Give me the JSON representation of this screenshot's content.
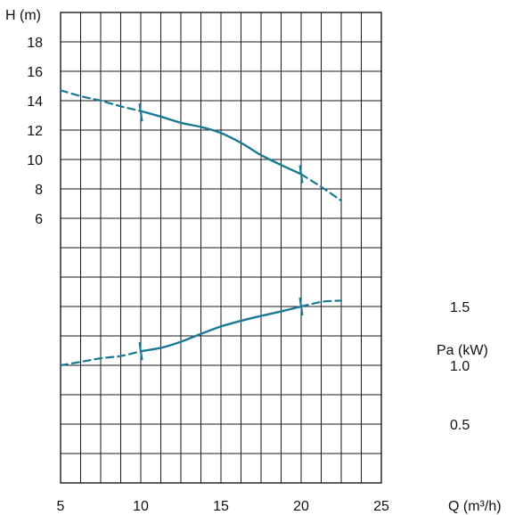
{
  "chart_data": {
    "type": "line",
    "colors": {
      "curve": "#1a7a94",
      "grid": "#1a1a1a"
    },
    "x_axis": {
      "label": "Q (m³/h)",
      "ticks": [
        "5",
        "10",
        "15",
        "20",
        "25"
      ],
      "range": [
        5,
        25
      ],
      "grid_step": 1.25
    },
    "h_axis": {
      "label": "H (m)",
      "ticks": [
        "18",
        "16",
        "14",
        "12",
        "10",
        "8",
        "6"
      ],
      "range": [
        -12,
        20
      ],
      "grid_step": 2
    },
    "p_axis": {
      "label": "Pa (kW)",
      "ticks": [
        "1.5",
        "1.0",
        "0.5"
      ],
      "range": [
        0,
        4
      ],
      "grid_step": 0.25
    },
    "series": [
      {
        "axis": "h_axis",
        "dashed_segments": [
          {
            "x": [
              5,
              6.3,
              7.5,
              8.8,
              10.0
            ],
            "y": [
              14.7,
              14.3,
              14.0,
              13.6,
              13.3
            ]
          },
          {
            "x": [
              20.0,
              21.3,
              22.5
            ],
            "y": [
              9.0,
              8.1,
              7.2
            ]
          }
        ],
        "solid_segment": {
          "x": [
            10.0,
            11.3,
            12.5,
            13.8,
            15.0,
            16.3,
            17.5,
            18.8,
            20.0
          ],
          "y": [
            13.3,
            12.9,
            12.5,
            12.2,
            11.8,
            11.1,
            10.3,
            9.6,
            9.0
          ]
        },
        "marks": [
          {
            "x": 10.0,
            "y": 13.2
          },
          {
            "x": 20.0,
            "y": 9.0
          }
        ]
      },
      {
        "axis": "p_axis",
        "dashed_segments": [
          {
            "x": [
              5,
              6.3,
              7.5,
              8.8,
              10.0
            ],
            "y": [
              1.0,
              1.03,
              1.06,
              1.08,
              1.12
            ]
          },
          {
            "x": [
              20.0,
              21.3,
              22.5
            ],
            "y": [
              1.5,
              1.54,
              1.55
            ]
          }
        ],
        "solid_segment": {
          "x": [
            10.0,
            11.3,
            12.5,
            13.8,
            15.0,
            16.3,
            17.5,
            18.8,
            20.0
          ],
          "y": [
            1.12,
            1.15,
            1.2,
            1.27,
            1.33,
            1.38,
            1.42,
            1.46,
            1.5
          ]
        },
        "marks": [
          {
            "x": 10.0,
            "y": 1.12
          },
          {
            "x": 20.0,
            "y": 1.5
          }
        ]
      }
    ]
  }
}
